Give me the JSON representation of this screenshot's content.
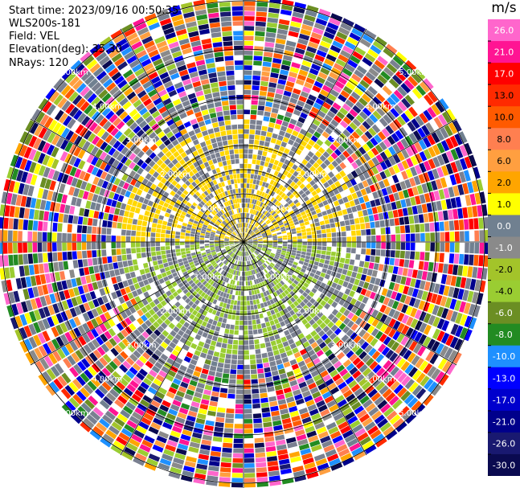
{
  "header": {
    "start_time": "Start time: 2023/09/16 00:50:35",
    "instrument": "WLS200s-181",
    "field": "Field: VEL",
    "elevation": "Elevation(deg): 35.30",
    "nrays": "NRays: 120"
  },
  "colorbar": {
    "unit": "m/s",
    "ticks": [
      "26.0",
      "21.0",
      "17.0",
      "13.0",
      "10.0",
      "8.0",
      "6.0",
      "2.0",
      "1.0",
      "0.0",
      "-1.0",
      "-2.0",
      "-4.0",
      "-6.0",
      "-8.0",
      "-10.0",
      "-13.0",
      "-17.0",
      "-21.0",
      "-26.0",
      "-30.0"
    ],
    "colors": [
      "#ff66cc",
      "#ff1493",
      "#ff0000",
      "#ff2a00",
      "#ff5a00",
      "#ff7f50",
      "#ff9f40",
      "#ffa500",
      "#ffff00",
      "#708090",
      "#8a8a8a",
      "#a3c42a",
      "#9acd32",
      "#6b8e23",
      "#228b22",
      "#1e90ff",
      "#0000ff",
      "#0000cd",
      "#00008b",
      "#191970",
      "#0a0a50"
    ]
  },
  "chart_data": {
    "type": "heatmap",
    "title": "",
    "field": "VEL",
    "unit": "m/s",
    "projection": "polar PPI",
    "nrays": 120,
    "range_ring_labels": [
      "1.00km",
      "2.00km",
      "3.00km",
      "4.00km",
      "5.00km"
    ],
    "range_rings_km": [
      1,
      2,
      3,
      4,
      5
    ],
    "color_levels": [
      -30,
      -26,
      -21,
      -17,
      -13,
      -10,
      -8,
      -6,
      -4,
      -2,
      -1,
      0,
      1,
      2,
      6,
      8,
      10,
      13,
      17,
      21,
      26
    ],
    "pattern": {
      "inner_region_km": 2.5,
      "northern_inner_values_ms": "approximately 1 to 2 (yellow)",
      "southern_inner_values_ms": "approximately -1 to -2 (yellow-green)",
      "surrounding_near_zero": "grey (about 0)",
      "outer_region": "noisy velocities spanning the full colour range"
    }
  }
}
